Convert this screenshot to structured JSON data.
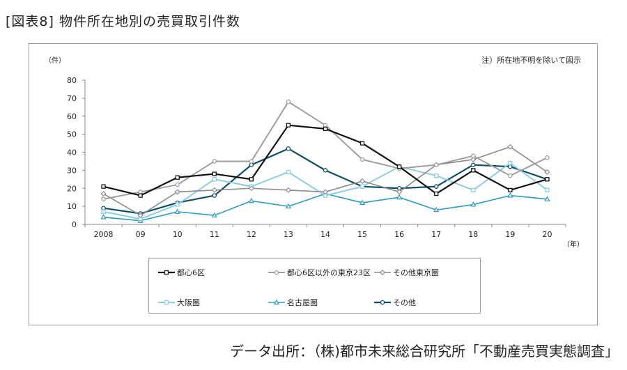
{
  "figure": {
    "title": "[図表8] 物件所在地別の売買取引件数",
    "note": "注）所在地不明を除いて図示",
    "source": "データ出所：（株)都市未来総合研究所「不動産売買実態調査」"
  },
  "chart_data": {
    "type": "line",
    "categories": [
      "2008",
      "09",
      "10",
      "11",
      "12",
      "13",
      "14",
      "15",
      "16",
      "17",
      "18",
      "19",
      "20"
    ],
    "ylim": [
      0,
      80
    ],
    "yticks": [
      0,
      10,
      20,
      30,
      40,
      50,
      60,
      70,
      80
    ],
    "yunit": "（件）",
    "xunit": "（年）",
    "grid": false,
    "legend_position": "bottom",
    "series": [
      {
        "name": "都心6区",
        "color": "#111111",
        "marker": "square",
        "width": 2.2,
        "values": [
          21,
          16,
          26,
          28,
          25,
          55,
          53,
          45,
          32,
          17,
          30,
          19,
          25
        ]
      },
      {
        "name": "都心6区以外の東京23区",
        "color": "#9e9e9e",
        "marker": "circle",
        "width": 2,
        "values": [
          14,
          18,
          22,
          35,
          35,
          68,
          55,
          36,
          31,
          33,
          38,
          27,
          37
        ]
      },
      {
        "name": "その他東京圏",
        "color": "#8a8a8a",
        "marker": "diamond",
        "width": 1.6,
        "values": [
          17,
          5,
          18,
          19,
          20,
          19,
          18,
          24,
          18,
          33,
          36,
          43,
          29
        ]
      },
      {
        "name": "大阪圏",
        "color": "#8dcde3",
        "marker": "square",
        "width": 2,
        "values": [
          7,
          3,
          11,
          25,
          21,
          29,
          16,
          21,
          32,
          27,
          19,
          34,
          19
        ]
      },
      {
        "name": "名古屋圏",
        "color": "#2a9bbf",
        "marker": "triangle",
        "width": 1.6,
        "values": [
          4,
          2,
          7,
          5,
          13,
          10,
          17,
          12,
          15,
          8,
          11,
          16,
          14
        ]
      },
      {
        "name": "その他",
        "color": "#0e4e64",
        "marker": "circle",
        "width": 2.2,
        "values": [
          9,
          6,
          12,
          16,
          33,
          42,
          30,
          21,
          20,
          21,
          33,
          32,
          25
        ]
      }
    ]
  }
}
